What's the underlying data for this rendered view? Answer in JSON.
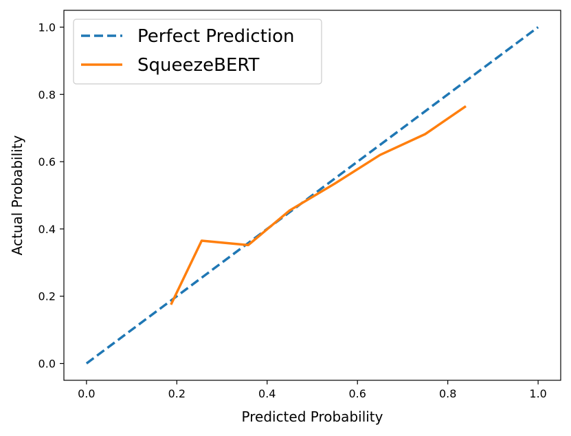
{
  "chart_data": {
    "type": "line",
    "title": "",
    "xlabel": "Predicted Probability",
    "ylabel": "Actual Probability",
    "xlim": [
      -0.05,
      1.05
    ],
    "ylim": [
      -0.05,
      1.05
    ],
    "x_ticks": [
      "0.0",
      "0.2",
      "0.4",
      "0.6",
      "0.8",
      "1.0"
    ],
    "y_ticks": [
      "0.0",
      "0.2",
      "0.4",
      "0.6",
      "0.8",
      "1.0"
    ],
    "grid": false,
    "legend_position": "top-left",
    "series": [
      {
        "name": "Perfect Prediction",
        "style": "dashed",
        "color": "#1f77b4",
        "x": [
          0.0,
          1.0
        ],
        "y": [
          0.0,
          1.0
        ]
      },
      {
        "name": "SqueezeBERT",
        "style": "solid",
        "color": "#ff7f0e",
        "x": [
          0.187,
          0.255,
          0.358,
          0.45,
          0.55,
          0.65,
          0.75,
          0.84
        ],
        "y": [
          0.175,
          0.365,
          0.352,
          0.455,
          0.535,
          0.62,
          0.682,
          0.765
        ]
      }
    ]
  }
}
